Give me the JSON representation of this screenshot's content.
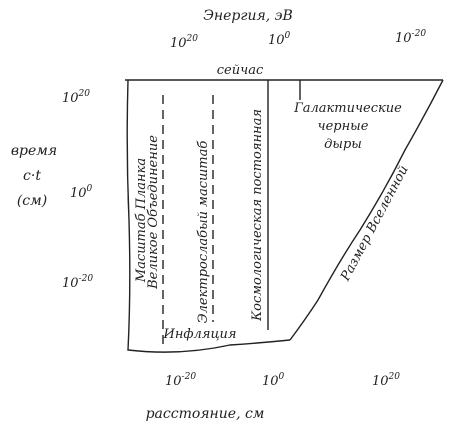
{
  "top_axis": {
    "title": "Энергия, эВ",
    "ticks": [
      {
        "base": "10",
        "exp": "20"
      },
      {
        "base": "10",
        "exp": "0"
      },
      {
        "base": "10",
        "exp": "-20"
      }
    ]
  },
  "left_axis": {
    "title_lines": [
      "время",
      "c·t",
      "(см)"
    ],
    "ticks": [
      {
        "base": "10",
        "exp": "20"
      },
      {
        "base": "10",
        "exp": "0"
      },
      {
        "base": "10",
        "exp": "-20"
      }
    ]
  },
  "bottom_axis": {
    "title": "расстояние, см",
    "ticks": [
      {
        "base": "10",
        "exp": "-20"
      },
      {
        "base": "10",
        "exp": "0"
      },
      {
        "base": "10",
        "exp": "20"
      }
    ]
  },
  "labels": {
    "now": "сейчас",
    "planck": "Масштаб Планка",
    "gut": "Великое Объединение",
    "electroweak": "Электрослабый масштаб",
    "cosmological": "Космологическая постоянная",
    "black_holes": [
      "Галактические",
      "черные",
      "дыры"
    ],
    "universe_size": "Размер Вселенной",
    "inflation": "Инфляция"
  }
}
